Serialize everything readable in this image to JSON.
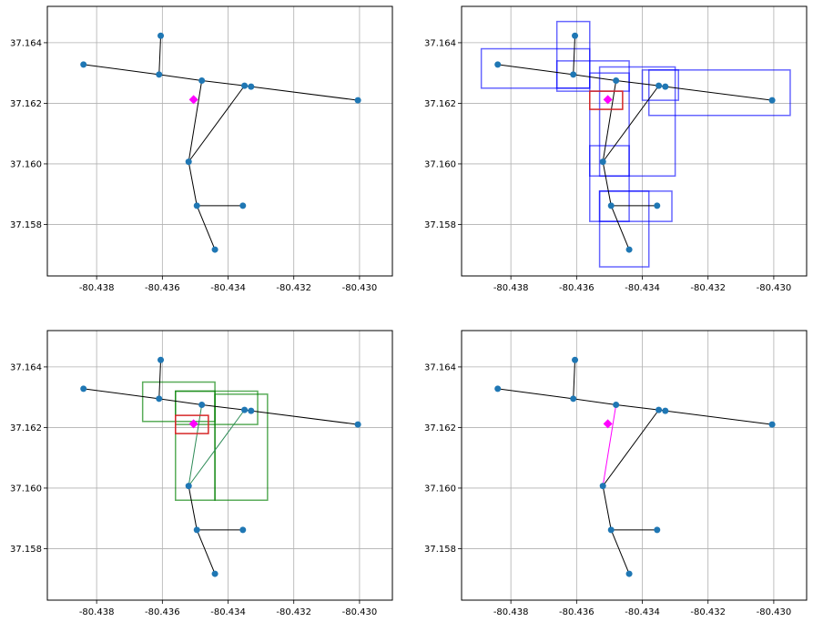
{
  "chart_data": {
    "type": "scatter",
    "layout": "2x2 grid of map-style plots sharing identical axes",
    "xlim": [
      -80.4395,
      -80.429
    ],
    "ylim": [
      37.1563,
      37.1652
    ],
    "xticks": [
      -80.438,
      -80.436,
      -80.434,
      -80.432,
      -80.43
    ],
    "xtick_labels": [
      "-80.438",
      "-80.436",
      "-80.434",
      "-80.432",
      "-80.430"
    ],
    "yticks": [
      37.158,
      37.16,
      37.162,
      37.164
    ],
    "ytick_labels": [
      "37.158",
      "37.160",
      "37.162",
      "37.164"
    ],
    "grid": true,
    "colors": {
      "node": "#1f77b4",
      "edge": "#000000",
      "query_point": "#ff00ff",
      "query_box": "#d62728",
      "blue_box": "#0000ff",
      "green_box": "#008000",
      "highlight_edge": "#ff00ff",
      "green_edge": "#2e8b57",
      "grid": "#b0b0b0"
    },
    "nodes": [
      {
        "id": "A",
        "x": -80.4384,
        "y": 37.16328
      },
      {
        "id": "B",
        "x": -80.4361,
        "y": 37.16295
      },
      {
        "id": "C",
        "x": -80.43605,
        "y": 37.16423
      },
      {
        "id": "D",
        "x": -80.4348,
        "y": 37.16275
      },
      {
        "id": "E",
        "x": -80.4335,
        "y": 37.16258
      },
      {
        "id": "F",
        "x": -80.4333,
        "y": 37.16255
      },
      {
        "id": "G",
        "x": -80.43005,
        "y": 37.1621
      },
      {
        "id": "H",
        "x": -80.4352,
        "y": 37.16007
      },
      {
        "id": "I",
        "x": -80.43495,
        "y": 37.15862
      },
      {
        "id": "J",
        "x": -80.43355,
        "y": 37.15862
      },
      {
        "id": "K",
        "x": -80.4344,
        "y": 37.15717
      }
    ],
    "edges": [
      [
        "A",
        "B"
      ],
      [
        "B",
        "D"
      ],
      [
        "D",
        "E"
      ],
      [
        "E",
        "F"
      ],
      [
        "F",
        "G"
      ],
      [
        "B",
        "C"
      ],
      [
        "D",
        "H"
      ],
      [
        "E",
        "H"
      ],
      [
        "H",
        "I"
      ],
      [
        "I",
        "J"
      ],
      [
        "I",
        "K"
      ]
    ],
    "query_point": {
      "x": -80.43505,
      "y": 37.16212
    },
    "panels": [
      {
        "id": "top-left",
        "blue_boxes": [],
        "green_boxes": [],
        "highlight_edges": [],
        "green_edges": [],
        "show_query_box": false
      },
      {
        "id": "top-right",
        "query_box": {
          "x0": -80.4356,
          "x1": -80.4346,
          "y0": 37.1618,
          "y1": 37.1624
        },
        "blue_boxes": [
          {
            "x0": -80.4366,
            "x1": -80.4356,
            "y0": 37.1625,
            "y1": 37.1647
          },
          {
            "x0": -80.4389,
            "x1": -80.4356,
            "y0": 37.1625,
            "y1": 37.1638
          },
          {
            "x0": -80.4366,
            "x1": -80.4344,
            "y0": 37.1624,
            "y1": 37.1634
          },
          {
            "x0": -80.4356,
            "x1": -80.4344,
            "y0": 37.1596,
            "y1": 37.163
          },
          {
            "x0": -80.4353,
            "x1": -80.433,
            "y0": 37.1596,
            "y1": 37.1632
          },
          {
            "x0": -80.434,
            "x1": -80.4329,
            "y0": 37.1621,
            "y1": 37.1631
          },
          {
            "x0": -80.4338,
            "x1": -80.4295,
            "y0": 37.1616,
            "y1": 37.1631
          },
          {
            "x0": -80.4356,
            "x1": -80.4344,
            "y0": 37.1581,
            "y1": 37.1606
          },
          {
            "x0": -80.4353,
            "x1": -80.4331,
            "y0": 37.1581,
            "y1": 37.1591
          },
          {
            "x0": -80.4353,
            "x1": -80.4338,
            "y0": 37.1566,
            "y1": 37.1591
          }
        ],
        "green_boxes": [],
        "highlight_edges": [],
        "green_edges": [],
        "show_query_box": true
      },
      {
        "id": "bottom-left",
        "query_box": {
          "x0": -80.4356,
          "x1": -80.4346,
          "y0": 37.1618,
          "y1": 37.1624
        },
        "blue_boxes": [],
        "green_boxes": [
          {
            "x0": -80.4366,
            "x1": -80.4344,
            "y0": 37.1622,
            "y1": 37.1635
          },
          {
            "x0": -80.4356,
            "x1": -80.4344,
            "y0": 37.1596,
            "y1": 37.1632
          },
          {
            "x0": -80.4356,
            "x1": -80.4331,
            "y0": 37.1621,
            "y1": 37.1632
          },
          {
            "x0": -80.4344,
            "x1": -80.4328,
            "y0": 37.1596,
            "y1": 37.1631
          }
        ],
        "highlight_edges": [],
        "green_edges": [
          [
            "D",
            "H"
          ],
          [
            "E",
            "H"
          ]
        ],
        "show_query_box": true
      },
      {
        "id": "bottom-right",
        "blue_boxes": [],
        "green_boxes": [],
        "highlight_edges": [
          [
            "D",
            "H"
          ]
        ],
        "green_edges": [],
        "show_query_box": false
      }
    ]
  }
}
